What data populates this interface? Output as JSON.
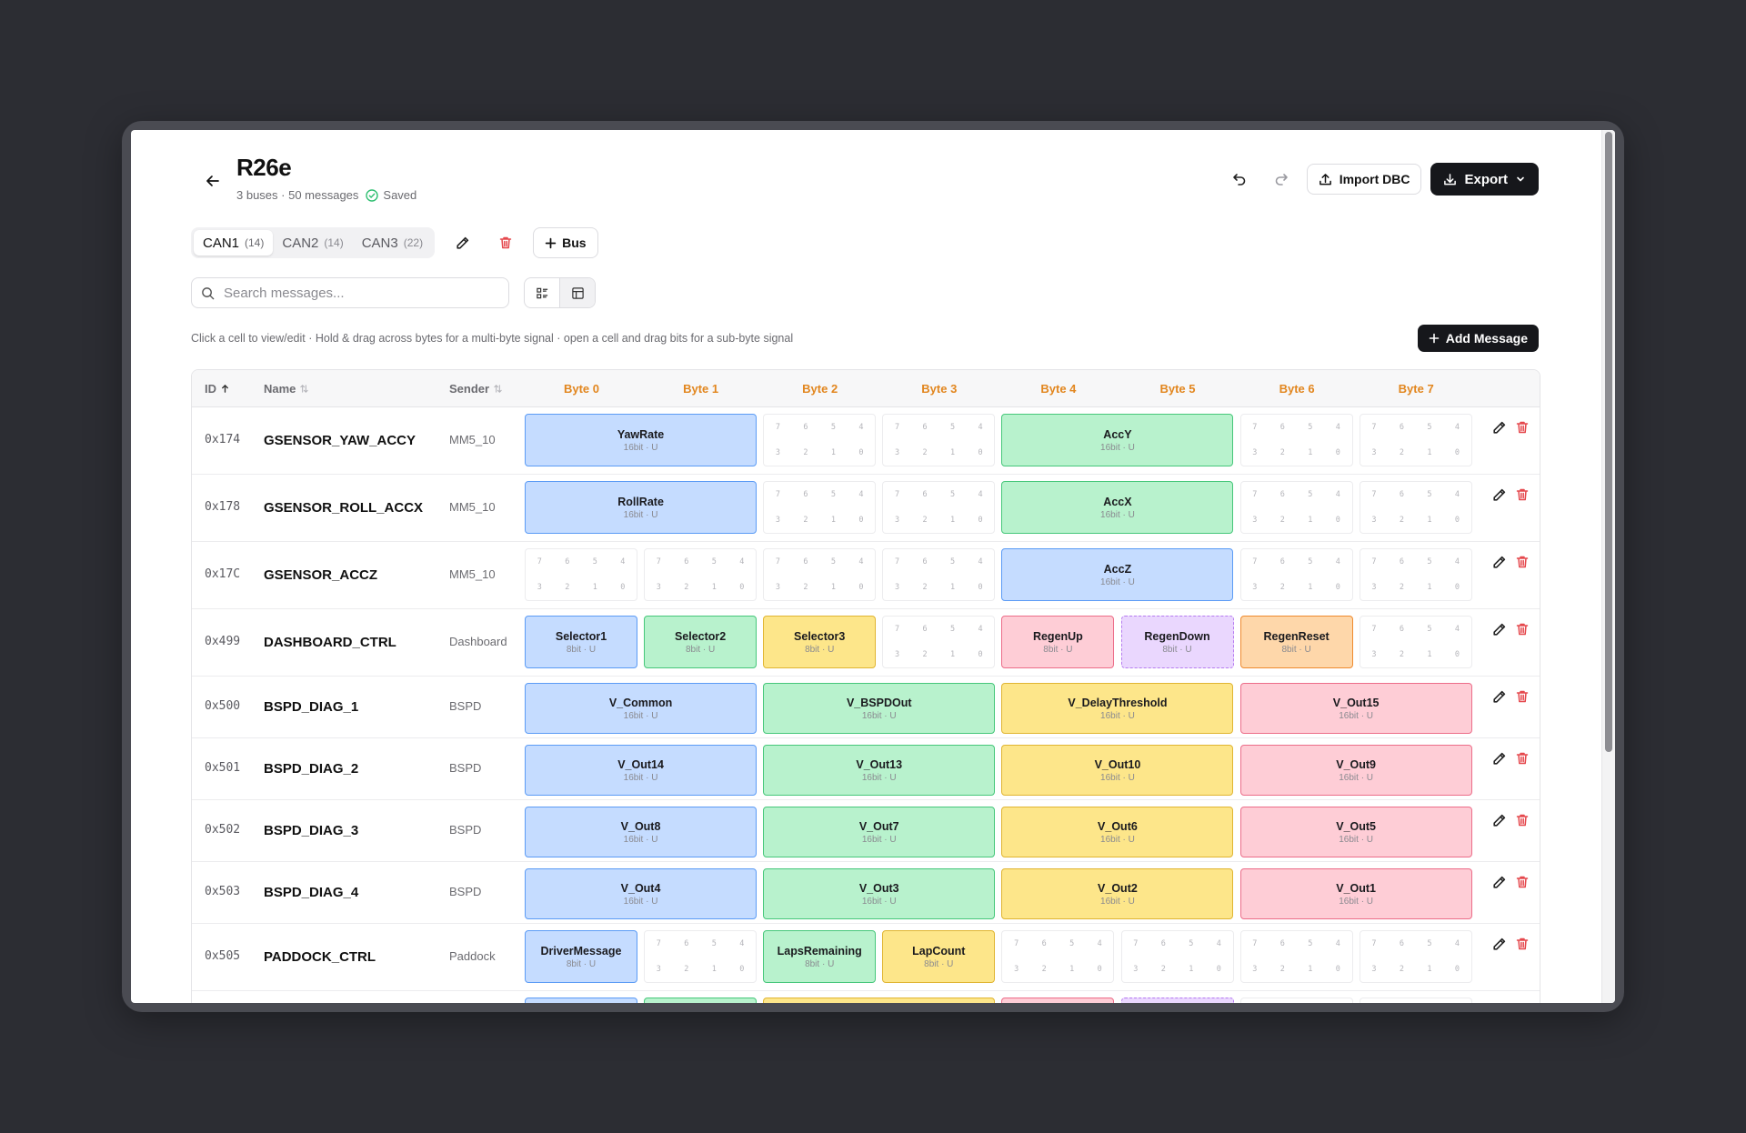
{
  "header": {
    "title": "R26e",
    "subtitle": "3 buses · 50 messages",
    "saved": "Saved",
    "import_label": "Import DBC",
    "export_label": "Export"
  },
  "tabs": [
    {
      "label": "CAN1",
      "count": "(14)",
      "active": true
    },
    {
      "label": "CAN2",
      "count": "(14)",
      "active": false
    },
    {
      "label": "CAN3",
      "count": "(22)",
      "active": false
    }
  ],
  "add_bus_label": "Bus",
  "search": {
    "placeholder": "Search messages..."
  },
  "hint": "Click a cell to view/edit · Hold & drag across bytes for a multi-byte signal · open a cell and drag bits for a sub-byte signal",
  "add_message_label": "Add Message",
  "columns": {
    "id": "ID",
    "name": "Name",
    "sender": "Sender"
  },
  "byte_headers": [
    "Byte 0",
    "Byte 1",
    "Byte 2",
    "Byte 3",
    "Byte 4",
    "Byte 5",
    "Byte 6",
    "Byte 7"
  ],
  "bit_labels": [
    "7",
    "6",
    "5",
    "4",
    "3",
    "2",
    "1",
    "0"
  ],
  "messages": [
    {
      "id": "0x174",
      "name": "GSENSOR_YAW_ACCY",
      "sender": "MM5_10",
      "signals": [
        {
          "name": "YawRate",
          "meta": "16bit · U",
          "start": 0,
          "span": 2,
          "color": "blue"
        },
        {
          "name": "AccY",
          "meta": "16bit · U",
          "start": 4,
          "span": 2,
          "color": "green"
        }
      ]
    },
    {
      "id": "0x178",
      "name": "GSENSOR_ROLL_ACCX",
      "sender": "MM5_10",
      "signals": [
        {
          "name": "RollRate",
          "meta": "16bit · U",
          "start": 0,
          "span": 2,
          "color": "blue"
        },
        {
          "name": "AccX",
          "meta": "16bit · U",
          "start": 4,
          "span": 2,
          "color": "green"
        }
      ]
    },
    {
      "id": "0x17C",
      "name": "GSENSOR_ACCZ",
      "sender": "MM5_10",
      "signals": [
        {
          "name": "AccZ",
          "meta": "16bit · U",
          "start": 4,
          "span": 2,
          "color": "blue"
        }
      ]
    },
    {
      "id": "0x499",
      "name": "DASHBOARD_CTRL",
      "sender": "Dashboard",
      "signals": [
        {
          "name": "Selector1",
          "meta": "8bit · U",
          "start": 0,
          "span": 1,
          "color": "blue"
        },
        {
          "name": "Selector2",
          "meta": "8bit · U",
          "start": 1,
          "span": 1,
          "color": "green"
        },
        {
          "name": "Selector3",
          "meta": "8bit · U",
          "start": 2,
          "span": 1,
          "color": "yellow"
        },
        {
          "name": "RegenUp",
          "meta": "8bit · U",
          "start": 4,
          "span": 1,
          "color": "pink"
        },
        {
          "name": "RegenDown",
          "meta": "8bit · U",
          "start": 5,
          "span": 1,
          "color": "purple"
        },
        {
          "name": "RegenReset",
          "meta": "8bit · U",
          "start": 6,
          "span": 1,
          "color": "orange"
        }
      ]
    },
    {
      "id": "0x500",
      "name": "BSPD_DIAG_1",
      "sender": "BSPD",
      "signals": [
        {
          "name": "V_Common",
          "meta": "16bit · U",
          "start": 0,
          "span": 2,
          "color": "blue"
        },
        {
          "name": "V_BSPDOut",
          "meta": "16bit · U",
          "start": 2,
          "span": 2,
          "color": "green"
        },
        {
          "name": "V_DelayThreshold",
          "meta": "16bit · U",
          "start": 4,
          "span": 2,
          "color": "yellow"
        },
        {
          "name": "V_Out15",
          "meta": "16bit · U",
          "start": 6,
          "span": 2,
          "color": "pink"
        }
      ]
    },
    {
      "id": "0x501",
      "name": "BSPD_DIAG_2",
      "sender": "BSPD",
      "signals": [
        {
          "name": "V_Out14",
          "meta": "16bit · U",
          "start": 0,
          "span": 2,
          "color": "blue"
        },
        {
          "name": "V_Out13",
          "meta": "16bit · U",
          "start": 2,
          "span": 2,
          "color": "green"
        },
        {
          "name": "V_Out10",
          "meta": "16bit · U",
          "start": 4,
          "span": 2,
          "color": "yellow"
        },
        {
          "name": "V_Out9",
          "meta": "16bit · U",
          "start": 6,
          "span": 2,
          "color": "pink"
        }
      ]
    },
    {
      "id": "0x502",
      "name": "BSPD_DIAG_3",
      "sender": "BSPD",
      "signals": [
        {
          "name": "V_Out8",
          "meta": "16bit · U",
          "start": 0,
          "span": 2,
          "color": "blue"
        },
        {
          "name": "V_Out7",
          "meta": "16bit · U",
          "start": 2,
          "span": 2,
          "color": "green"
        },
        {
          "name": "V_Out6",
          "meta": "16bit · U",
          "start": 4,
          "span": 2,
          "color": "yellow"
        },
        {
          "name": "V_Out5",
          "meta": "16bit · U",
          "start": 6,
          "span": 2,
          "color": "pink"
        }
      ]
    },
    {
      "id": "0x503",
      "name": "BSPD_DIAG_4",
      "sender": "BSPD",
      "signals": [
        {
          "name": "V_Out4",
          "meta": "16bit · U",
          "start": 0,
          "span": 2,
          "color": "blue"
        },
        {
          "name": "V_Out3",
          "meta": "16bit · U",
          "start": 2,
          "span": 2,
          "color": "green"
        },
        {
          "name": "V_Out2",
          "meta": "16bit · U",
          "start": 4,
          "span": 2,
          "color": "yellow"
        },
        {
          "name": "V_Out1",
          "meta": "16bit · U",
          "start": 6,
          "span": 2,
          "color": "pink"
        }
      ]
    },
    {
      "id": "0x505",
      "name": "PADDOCK_CTRL",
      "sender": "Paddock",
      "signals": [
        {
          "name": "DriverMessage",
          "meta": "8bit · U",
          "start": 0,
          "span": 1,
          "color": "blue"
        },
        {
          "name": "LapsRemaining",
          "meta": "8bit · U",
          "start": 2,
          "span": 1,
          "color": "green"
        },
        {
          "name": "LapCount",
          "meta": "8bit · U",
          "start": 3,
          "span": 1,
          "color": "yellow"
        }
      ]
    },
    {
      "id": "",
      "name": "",
      "sender": "",
      "signals": [
        {
          "name": "",
          "meta": "",
          "start": 0,
          "span": 1,
          "color": "blue"
        },
        {
          "name": "",
          "meta": "",
          "start": 1,
          "span": 1,
          "color": "green"
        },
        {
          "name": "",
          "meta": "",
          "start": 2,
          "span": 2,
          "color": "yellow"
        },
        {
          "name": "",
          "meta": "",
          "start": 4,
          "span": 1,
          "color": "pink"
        },
        {
          "name": "",
          "meta": "",
          "start": 5,
          "span": 1,
          "color": "purple"
        }
      ]
    }
  ]
}
